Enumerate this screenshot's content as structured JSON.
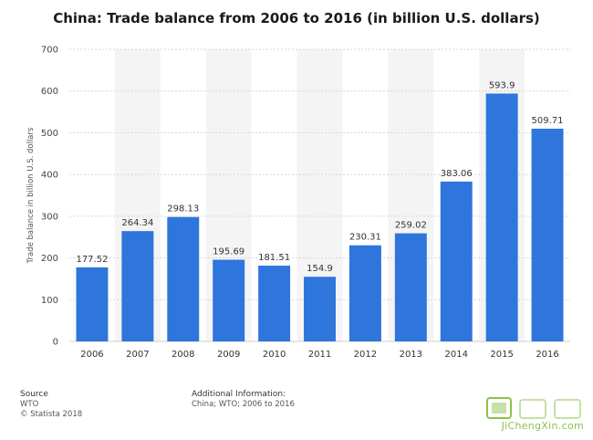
{
  "chart_data": {
    "type": "bar",
    "title": "China: Trade balance from 2006 to 2016 (in billion U.S. dollars)",
    "ylabel": "Trade balance in billion U.S. dollars",
    "xlabel": "",
    "categories": [
      "2006",
      "2007",
      "2008",
      "2009",
      "2010",
      "2011",
      "2012",
      "2013",
      "2014",
      "2015",
      "2016"
    ],
    "values": [
      177.52,
      264.34,
      298.13,
      195.69,
      181.51,
      154.9,
      230.31,
      259.02,
      383.06,
      593.9,
      509.71
    ],
    "value_labels": [
      "177.52",
      "264.34",
      "298.13",
      "195.69",
      "181.51",
      "154.9",
      "230.31",
      "259.02",
      "383.06",
      "593.9",
      "509.71"
    ],
    "ylim": [
      0,
      700
    ],
    "yticks": [
      0,
      100,
      200,
      300,
      400,
      500,
      600,
      700
    ],
    "grid": true,
    "bar_color": "#2e75dc",
    "band_color": "#f4f4f4"
  },
  "footer": {
    "source_heading": "Source",
    "source_lines": [
      "WTO",
      "© Statista 2018"
    ],
    "info_heading": "Additional Information:",
    "info_lines": [
      "China; WTO; 2006 to 2016"
    ]
  },
  "watermark": {
    "logo_text": "JiChengXin.com",
    "accent_color": "#8bc34a"
  }
}
